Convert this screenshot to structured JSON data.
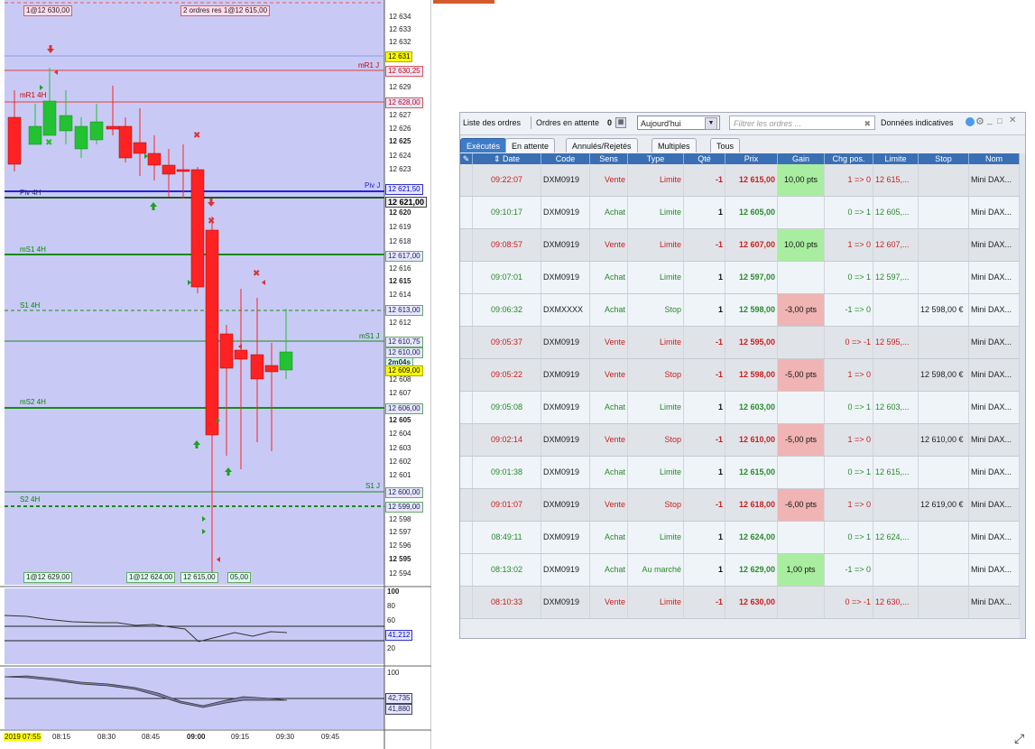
{
  "chart": {
    "price_axis": {
      "ticks": [
        "12 634",
        "12 633",
        "12 632",
        "12 631",
        "12 630,25",
        "12 629",
        "12 628,00",
        "12 627",
        "12 626",
        "12 625",
        "12 624",
        "12 623",
        "12 621,50",
        "12 621,00",
        "12 620",
        "12 619",
        "12 618",
        "12 617,00",
        "12 616",
        "12 615",
        "12 614",
        "12 613,00",
        "12 612",
        "12 610,75",
        "12 610,00",
        "2m04s",
        "12 609,00",
        "12 608",
        "12 607",
        "12 606,00",
        "12 605",
        "12 604",
        "12 603",
        "12 602",
        "12 601",
        "12 600,00",
        "12 599,00",
        "12 598",
        "12 597",
        "12 596",
        "12 595",
        "12 594"
      ]
    },
    "levels": [
      {
        "name": "mR1 J",
        "value": "12 630,25"
      },
      {
        "name": "mR1 4H",
        "value": "12 628,00"
      },
      {
        "name": "Piv J",
        "value": "12 621,50"
      },
      {
        "name": "Piv 4H",
        "value": "12 621,00"
      },
      {
        "name": "mS1 4H",
        "value": "12 617,00"
      },
      {
        "name": "S1 4H",
        "value": "12 613,00"
      },
      {
        "name": "mS1 J",
        "value": "12 610,75"
      },
      {
        "name": "mS2 4H",
        "value": "12 606,00"
      },
      {
        "name": "S1 J",
        "value": "12 600,00"
      },
      {
        "name": "S2 4H",
        "value": "12 599,00"
      }
    ],
    "top_tags": [
      "1@12 630,00",
      "2 ordres res 1@12 615,00"
    ],
    "bottom_tags": [
      "1@12 629,00",
      "1@12 624,00",
      "12 615,00",
      "05,00"
    ],
    "osc1_axis": [
      "100",
      "80",
      "60",
      "41,212",
      "20"
    ],
    "osc2_axis": [
      "100",
      "42,735",
      "41,880"
    ],
    "time_axis": [
      "2019 07:55",
      "08:15",
      "08:30",
      "08:45",
      "09:00",
      "09:15",
      "09:30",
      "09:45"
    ],
    "colors": {
      "bg": "#c8caf5",
      "up": "#22c233",
      "down": "#ff2222",
      "pivot": "#2222dd"
    }
  },
  "orders": {
    "toolbar": {
      "list_label": "Liste des ordres",
      "pending_label": "Ordres en attente",
      "pending_count": "0",
      "period": "Aujourd'hui",
      "filter_placeholder": "Filtrer les ordres ...",
      "data_label": "Données indicatives"
    },
    "tabs": [
      "Exécutés",
      "En attente",
      "Annulés/Rejetés",
      "Multiples",
      "Tous"
    ],
    "columns": [
      "Date",
      "Code",
      "Sens",
      "Type",
      "Qté",
      "Prix",
      "Gain",
      "Chg pos.",
      "Limite",
      "Stop",
      "Nom"
    ],
    "rows": [
      {
        "date": "09:22:07",
        "code": "DXM0919",
        "sens": "Vente",
        "type": "Limite",
        "qte": "-1",
        "prix": "12 615,00",
        "gain": "10,00 pts",
        "chg": "1 => 0",
        "limite": "12 615,...",
        "stop": "",
        "nom": "Mini DAX..."
      },
      {
        "date": "09:10:17",
        "code": "DXM0919",
        "sens": "Achat",
        "type": "Limite",
        "qte": "1",
        "prix": "12 605,00",
        "gain": "",
        "chg": "0 => 1",
        "limite": "12 605,...",
        "stop": "",
        "nom": "Mini DAX..."
      },
      {
        "date": "09:08:57",
        "code": "DXM0919",
        "sens": "Vente",
        "type": "Limite",
        "qte": "-1",
        "prix": "12 607,00",
        "gain": "10,00 pts",
        "chg": "1 => 0",
        "limite": "12 607,...",
        "stop": "",
        "nom": "Mini DAX..."
      },
      {
        "date": "09:07:01",
        "code": "DXM0919",
        "sens": "Achat",
        "type": "Limite",
        "qte": "1",
        "prix": "12 597,00",
        "gain": "",
        "chg": "0 => 1",
        "limite": "12 597,...",
        "stop": "",
        "nom": "Mini DAX..."
      },
      {
        "date": "09:06:32",
        "code": "DXMXXXX",
        "sens": "Achat",
        "type": "Stop",
        "qte": "1",
        "prix": "12 598,00",
        "gain": "-3,00 pts",
        "chg": "-1 => 0",
        "limite": "",
        "stop": "12 598,00 €",
        "nom": "Mini DAX..."
      },
      {
        "date": "09:05:37",
        "code": "DXM0919",
        "sens": "Vente",
        "type": "Limite",
        "qte": "-1",
        "prix": "12 595,00",
        "gain": "",
        "chg": "0 => -1",
        "limite": "12 595,...",
        "stop": "",
        "nom": "Mini DAX..."
      },
      {
        "date": "09:05:22",
        "code": "DXM0919",
        "sens": "Vente",
        "type": "Stop",
        "qte": "-1",
        "prix": "12 598,00",
        "gain": "-5,00 pts",
        "chg": "1 => 0",
        "limite": "",
        "stop": "12 598,00 €",
        "nom": "Mini DAX..."
      },
      {
        "date": "09:05:08",
        "code": "DXM0919",
        "sens": "Achat",
        "type": "Limite",
        "qte": "1",
        "prix": "12 603,00",
        "gain": "",
        "chg": "0 => 1",
        "limite": "12 603,...",
        "stop": "",
        "nom": "Mini DAX..."
      },
      {
        "date": "09:02:14",
        "code": "DXM0919",
        "sens": "Vente",
        "type": "Stop",
        "qte": "-1",
        "prix": "12 610,00",
        "gain": "-5,00 pts",
        "chg": "1 => 0",
        "limite": "",
        "stop": "12 610,00 €",
        "nom": "Mini DAX..."
      },
      {
        "date": "09:01:38",
        "code": "DXM0919",
        "sens": "Achat",
        "type": "Limite",
        "qte": "1",
        "prix": "12 615,00",
        "gain": "",
        "chg": "0 => 1",
        "limite": "12 615,...",
        "stop": "",
        "nom": "Mini DAX..."
      },
      {
        "date": "09:01:07",
        "code": "DXM0919",
        "sens": "Vente",
        "type": "Stop",
        "qte": "-1",
        "prix": "12 618,00",
        "gain": "-6,00 pts",
        "chg": "1 => 0",
        "limite": "",
        "stop": "12 619,00 €",
        "nom": "Mini DAX..."
      },
      {
        "date": "08:49:11",
        "code": "DXM0919",
        "sens": "Achat",
        "type": "Limite",
        "qte": "1",
        "prix": "12 624,00",
        "gain": "",
        "chg": "0 => 1",
        "limite": "12 624,...",
        "stop": "",
        "nom": "Mini DAX..."
      },
      {
        "date": "08:13:02",
        "code": "DXM0919",
        "sens": "Achat",
        "type": "Au marché",
        "qte": "1",
        "prix": "12 629,00",
        "gain": "1,00 pts",
        "chg": "-1 => 0",
        "limite": "",
        "stop": "",
        "nom": "Mini DAX..."
      },
      {
        "date": "08:10:33",
        "code": "DXM0919",
        "sens": "Vente",
        "type": "Limite",
        "qte": "-1",
        "prix": "12 630,00",
        "gain": "",
        "chg": "0 => -1",
        "limite": "12 630,...",
        "stop": "",
        "nom": "Mini DAX..."
      }
    ],
    "colors": {
      "buy": "#2a8a2a",
      "sell": "#c81e1e",
      "gain_pos": "#a9eea0",
      "gain_neg": "#f0b4b4",
      "row_a": "#eef4f8",
      "row_b": "#e0e4e8"
    }
  },
  "icons": [
    "wrench-icon",
    "sort-icon",
    "calendar-icon",
    "clear-icon",
    "bubble-icon",
    "gear-icon",
    "minimize-icon",
    "maximize-icon",
    "close-icon",
    "resize-icon"
  ]
}
